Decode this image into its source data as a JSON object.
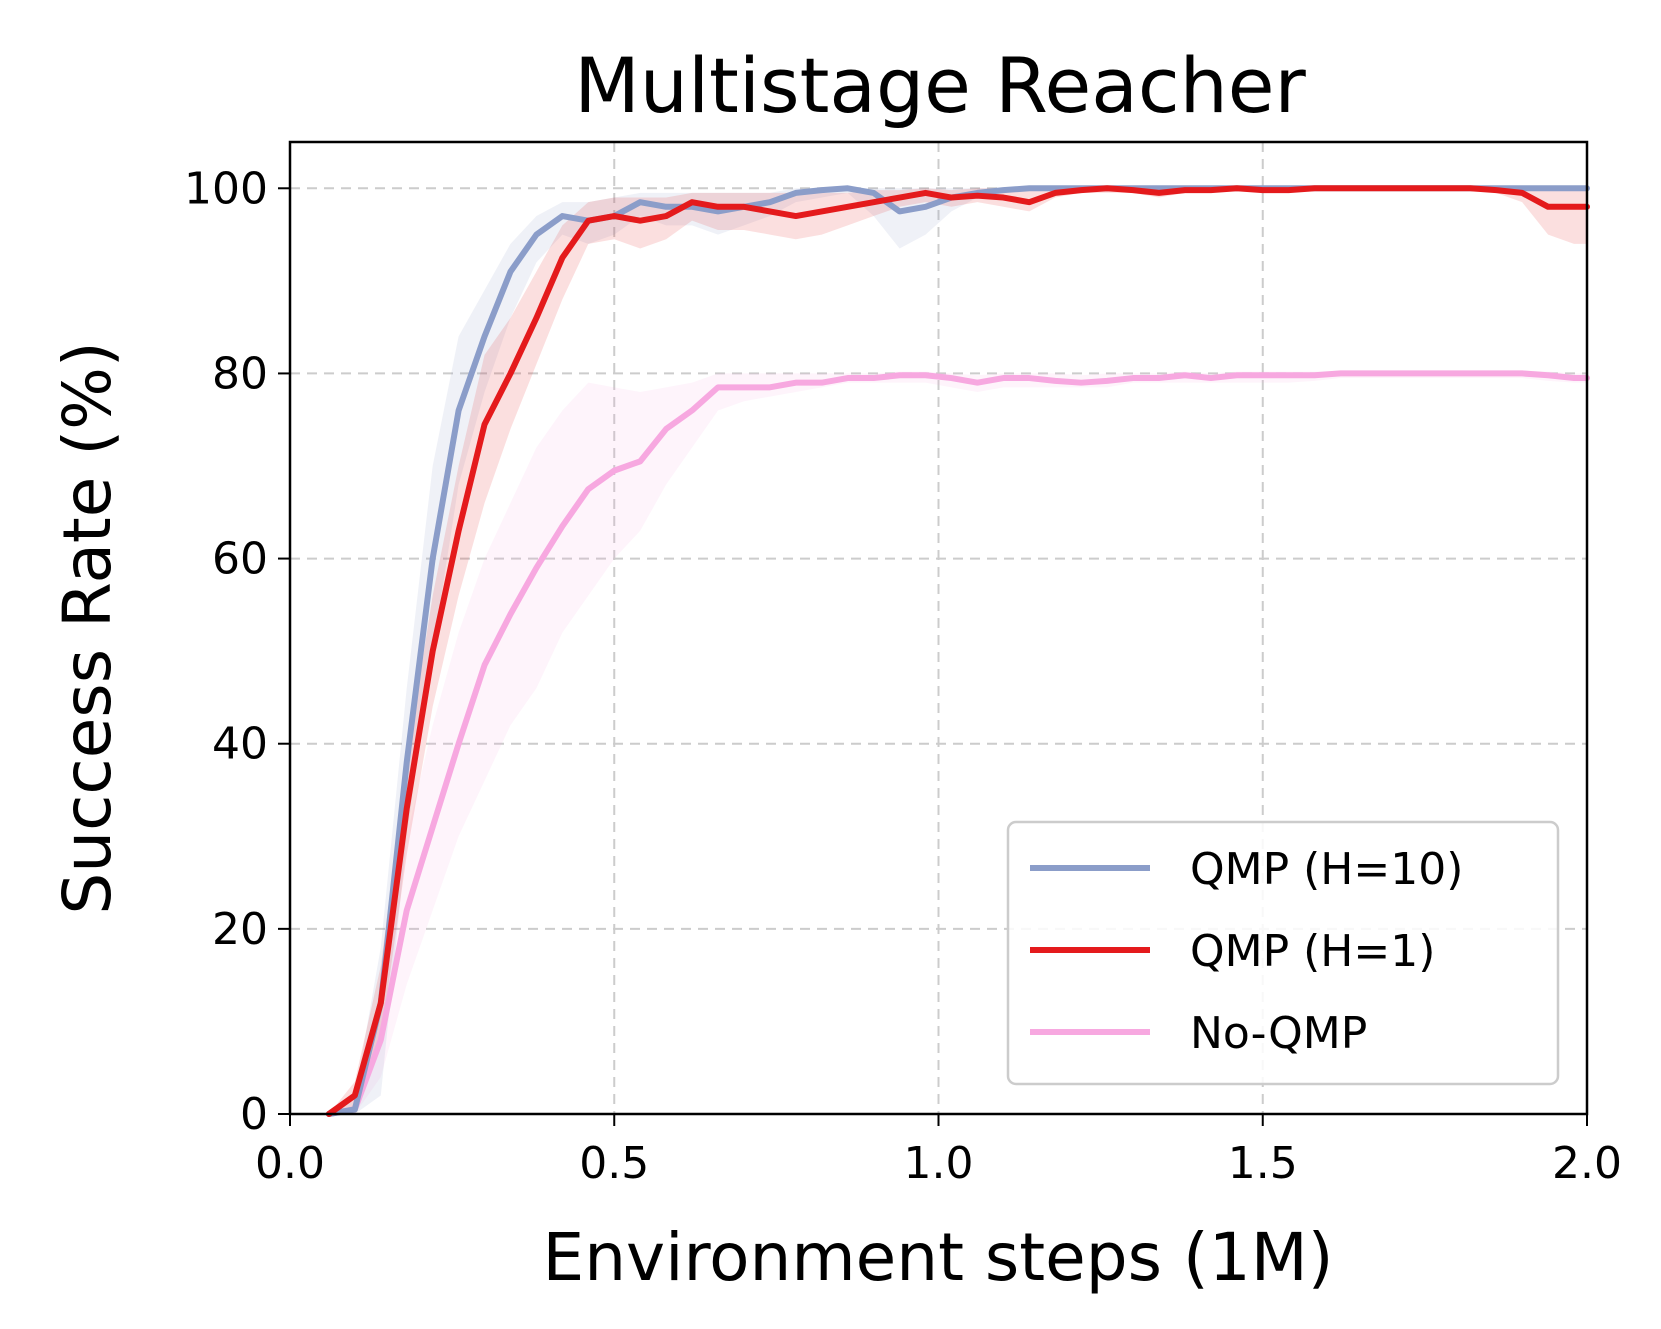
{
  "chart_data": {
    "type": "line",
    "title": "Multistage Reacher",
    "xlabel": "Environment steps (1M)",
    "ylabel": "Success Rate (%)",
    "xlim": [
      0.0,
      2.0
    ],
    "ylim": [
      0,
      105
    ],
    "xticks": [
      "0.0",
      "0.5",
      "1.0",
      "1.5",
      "2.0"
    ],
    "xtick_values": [
      0.0,
      0.5,
      1.0,
      1.5,
      2.0
    ],
    "yticks": [
      "0",
      "20",
      "40",
      "60",
      "80",
      "100"
    ],
    "ytick_values": [
      0,
      20,
      40,
      60,
      80,
      100
    ],
    "grid": true,
    "legend_position": "bottom-right",
    "x": [
      0.06,
      0.1,
      0.14,
      0.18,
      0.22,
      0.26,
      0.3,
      0.34,
      0.38,
      0.42,
      0.46,
      0.5,
      0.54,
      0.58,
      0.62,
      0.66,
      0.7,
      0.74,
      0.78,
      0.82,
      0.86,
      0.9,
      0.94,
      0.98,
      1.02,
      1.06,
      1.1,
      1.14,
      1.18,
      1.22,
      1.26,
      1.3,
      1.34,
      1.38,
      1.42,
      1.46,
      1.5,
      1.54,
      1.58,
      1.62,
      1.66,
      1.7,
      1.74,
      1.78,
      1.82,
      1.86,
      1.9,
      1.94,
      1.98,
      2.0
    ],
    "series": [
      {
        "name": "QMP (H=10)",
        "color": "#8b9dc9",
        "values": [
          0,
          0.5,
          12,
          38,
          60,
          76,
          84,
          91,
          95,
          97,
          96.5,
          97,
          98.5,
          98,
          98,
          97.5,
          98,
          98.5,
          99.5,
          99.8,
          100,
          99.5,
          97.5,
          98,
          99,
          99.5,
          99.8,
          100,
          100,
          100,
          100,
          100,
          100,
          100,
          100,
          100,
          100,
          100,
          100,
          100,
          100,
          100,
          100,
          100,
          100,
          100,
          100,
          100,
          100,
          100
        ],
        "lower": [
          0,
          0,
          2,
          30,
          50,
          68,
          78,
          86,
          92,
          95,
          94,
          95,
          97,
          96,
          96,
          95,
          96,
          97,
          98.5,
          99,
          99.5,
          97,
          93.5,
          95,
          97.5,
          99,
          99.5,
          100,
          100,
          100,
          100,
          100,
          100,
          100,
          100,
          100,
          100,
          100,
          100,
          100,
          100,
          100,
          100,
          100,
          100,
          100,
          100,
          100,
          100,
          100
        ],
        "upper": [
          0,
          2,
          18,
          46,
          70,
          84,
          89,
          94,
          97,
          98.5,
          98.5,
          99,
          99.5,
          99.5,
          99.5,
          99.5,
          99.5,
          99.5,
          100,
          100,
          100,
          100,
          100,
          100,
          100,
          100,
          100,
          100,
          100,
          100,
          100,
          100,
          100,
          100,
          100,
          100,
          100,
          100,
          100,
          100,
          100,
          100,
          100,
          100,
          100,
          100,
          100,
          100,
          100,
          100
        ]
      },
      {
        "name": "QMP (H=1)",
        "color": "#e41a1c",
        "values": [
          0,
          2,
          12,
          33,
          50,
          63,
          74.5,
          80,
          86,
          92.5,
          96.5,
          97,
          96.5,
          97,
          98.5,
          98,
          98,
          97.5,
          97,
          97.5,
          98,
          98.5,
          99,
          99.5,
          99,
          99.2,
          99,
          98.5,
          99.5,
          99.8,
          100,
          99.8,
          99.5,
          99.8,
          99.8,
          100,
          99.8,
          99.8,
          100,
          100,
          100,
          100,
          100,
          100,
          100,
          99.8,
          99.5,
          98,
          98,
          98
        ],
        "lower": [
          0,
          0.5,
          8,
          28,
          44,
          56,
          66,
          74,
          81,
          88,
          94,
          94.5,
          93.5,
          94.5,
          96.5,
          95.5,
          95.5,
          95,
          94.5,
          95,
          96,
          97,
          98,
          98.5,
          98,
          98.5,
          98,
          97.5,
          99,
          99.5,
          99.5,
          99.5,
          99,
          99.5,
          99.5,
          99.8,
          99.5,
          99.5,
          99.8,
          99.8,
          99.8,
          99.8,
          99.8,
          99.8,
          99.8,
          99.5,
          98.5,
          95,
          94,
          94
        ],
        "upper": [
          0,
          3.5,
          16,
          38,
          56,
          70,
          82,
          86,
          91,
          96,
          98.5,
          99,
          99,
          99,
          99.5,
          99.5,
          99.5,
          99.5,
          99.5,
          99.5,
          99.5,
          99.8,
          99.8,
          100,
          99.8,
          100,
          100,
          99.8,
          100,
          100,
          100,
          100,
          100,
          100,
          100,
          100,
          100,
          100,
          100,
          100,
          100,
          100,
          100,
          100,
          100,
          100,
          100,
          100,
          100,
          100
        ]
      },
      {
        "name": "No-QMP",
        "color": "#f7a8e0",
        "values": [
          0,
          0.5,
          8,
          22,
          31,
          40,
          48.5,
          54,
          59,
          63.5,
          67.5,
          69.5,
          70.5,
          74,
          76,
          78.5,
          78.5,
          78.5,
          79,
          79,
          79.5,
          79.5,
          79.8,
          79.8,
          79.5,
          79,
          79.5,
          79.5,
          79.2,
          79,
          79.2,
          79.5,
          79.5,
          79.8,
          79.5,
          79.8,
          79.8,
          79.8,
          79.8,
          80,
          80,
          80,
          80,
          80,
          80,
          80,
          80,
          79.8,
          79.5,
          79.5
        ],
        "lower": [
          0,
          0,
          4,
          14,
          22,
          30,
          36,
          42,
          46,
          52,
          56,
          60,
          63,
          68,
          72,
          76,
          77,
          77.5,
          78,
          78.5,
          79,
          79,
          79,
          79,
          78.5,
          78,
          78.5,
          78.5,
          78.5,
          78.5,
          78.5,
          79,
          79,
          79,
          79,
          79,
          79,
          79,
          79.2,
          79.5,
          79.5,
          79.5,
          79.5,
          79.5,
          79.5,
          79.5,
          79.5,
          79.2,
          79,
          79
        ],
        "upper": [
          0,
          1,
          12,
          30,
          42,
          52,
          60,
          66,
          72,
          76,
          79,
          78.5,
          78,
          78.5,
          79,
          80,
          80,
          80,
          80,
          80,
          80,
          80,
          80.2,
          80.2,
          80,
          79.8,
          80,
          80,
          80,
          79.8,
          80,
          80,
          80,
          80.2,
          80,
          80.2,
          80.2,
          80.2,
          80.2,
          80.3,
          80.3,
          80.3,
          80.3,
          80.3,
          80.3,
          80.3,
          80.3,
          80.2,
          80,
          80
        ]
      }
    ]
  }
}
